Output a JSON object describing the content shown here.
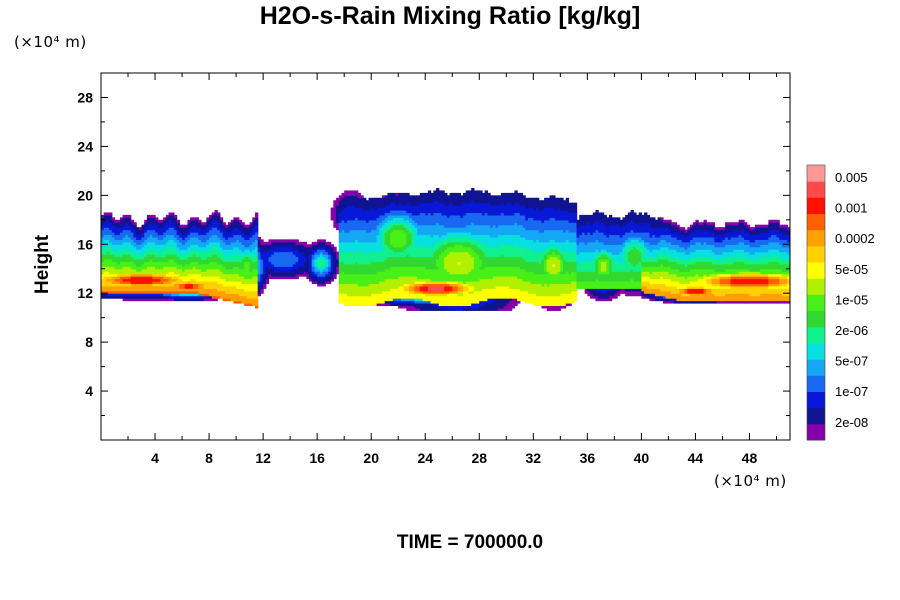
{
  "chart_data": {
    "type": "heatmap",
    "title": "H2O-s-Rain Mixing Ratio [kg/kg]",
    "ylabel": "Height",
    "xlabel": "",
    "x_unit": "(×10⁴ m)",
    "y_unit": "(×10⁴ m)",
    "x_ticks": [
      4,
      8,
      12,
      16,
      20,
      24,
      28,
      32,
      36,
      40,
      44,
      48
    ],
    "y_ticks": [
      4,
      8,
      12,
      16,
      20,
      24,
      28
    ],
    "xlim": [
      0,
      51
    ],
    "ylim": [
      0,
      30
    ],
    "colorbar": {
      "labels": [
        "0.005",
        "0.001",
        "0.0002",
        "5e-05",
        "1e-05",
        "2e-06",
        "5e-07",
        "1e-07",
        "2e-08"
      ],
      "colors": [
        "#8800aa",
        "#101490",
        "#0818d8",
        "#1868f0",
        "#14a8f4",
        "#08e0e0",
        "#10f08c",
        "#30d830",
        "#48f018",
        "#b0f000",
        "#ffff00",
        "#ffd000",
        "#ffa000",
        "#ff6000",
        "#ff1000",
        "#ff4a4a",
        "#ff9898"
      ]
    },
    "time_label": "TIME = 700000.0"
  },
  "colors": {
    "axis": "#000000",
    "background": "#ffffff"
  }
}
